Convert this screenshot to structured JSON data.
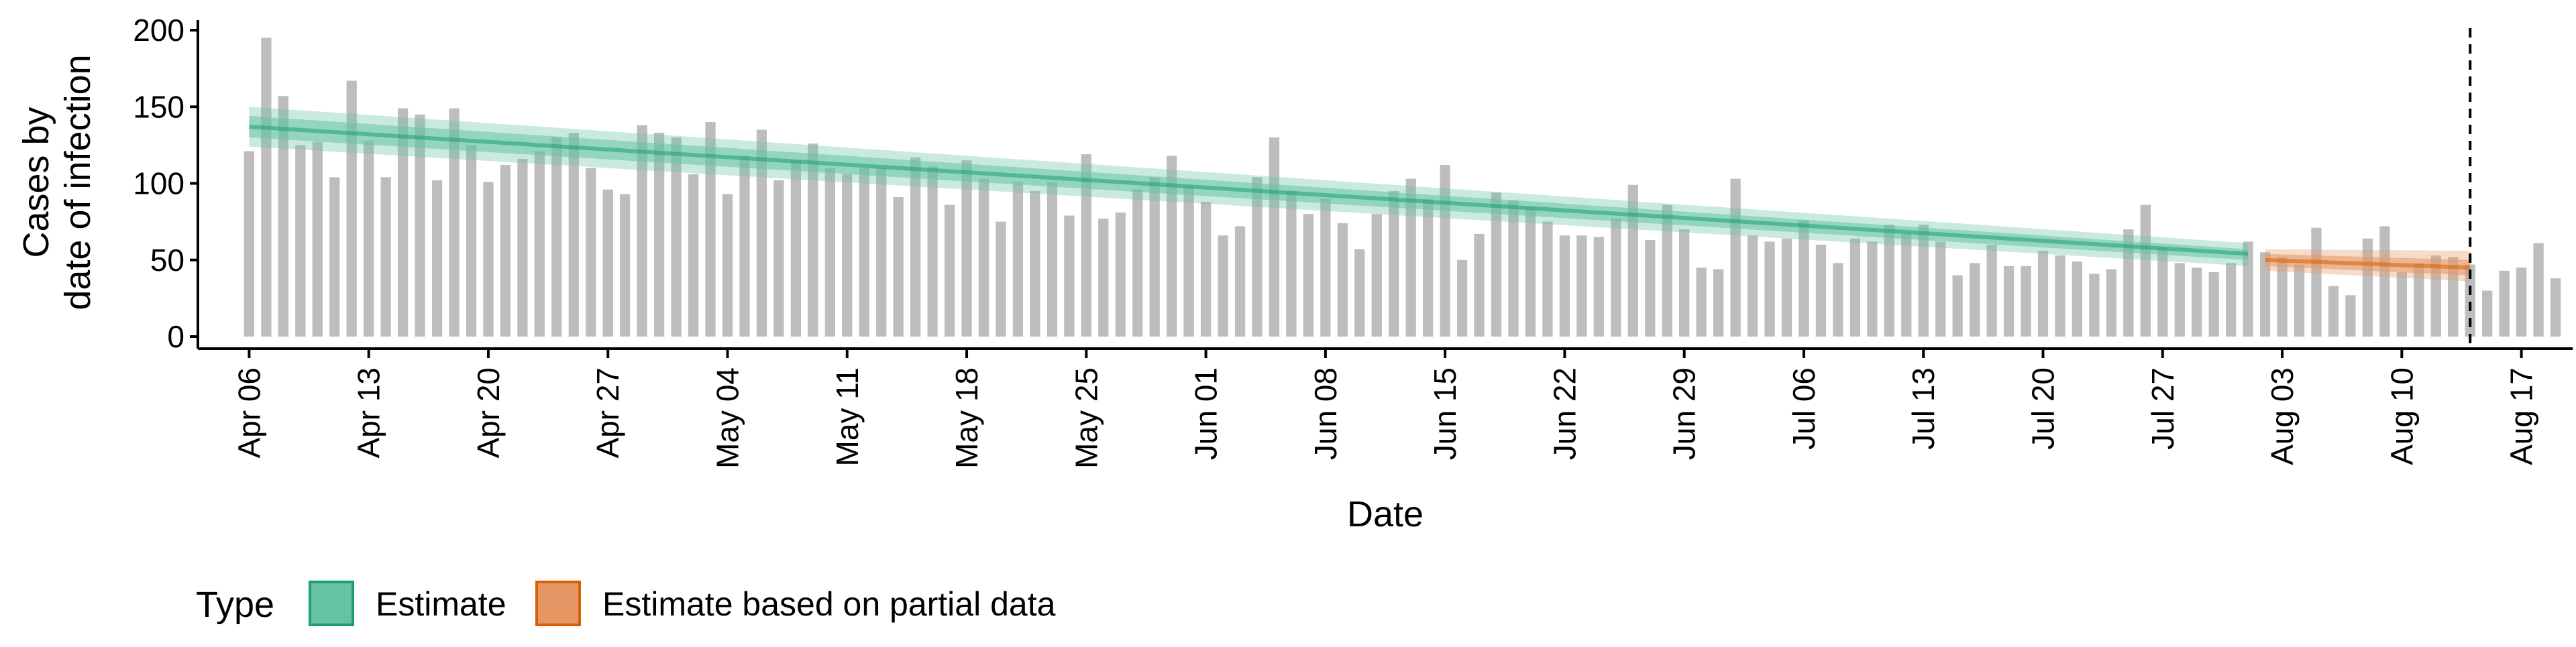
{
  "chart_data": {
    "type": "bar",
    "xlabel": "Date",
    "ylabel_lines": [
      "Cases by",
      "date of infection"
    ],
    "ylim": [
      0,
      200
    ],
    "y_ticks": [
      0,
      50,
      100,
      150,
      200
    ],
    "x_range": [
      "2020-04-03",
      "2020-08-20"
    ],
    "x_ticks": [
      {
        "date": "2020-04-06",
        "label": "Apr 06"
      },
      {
        "date": "2020-04-13",
        "label": "Apr 13"
      },
      {
        "date": "2020-04-20",
        "label": "Apr 20"
      },
      {
        "date": "2020-04-27",
        "label": "Apr 27"
      },
      {
        "date": "2020-05-04",
        "label": "May 04"
      },
      {
        "date": "2020-05-11",
        "label": "May 11"
      },
      {
        "date": "2020-05-18",
        "label": "May 18"
      },
      {
        "date": "2020-05-25",
        "label": "May 25"
      },
      {
        "date": "2020-06-01",
        "label": "Jun 01"
      },
      {
        "date": "2020-06-08",
        "label": "Jun 08"
      },
      {
        "date": "2020-06-15",
        "label": "Jun 15"
      },
      {
        "date": "2020-06-22",
        "label": "Jun 22"
      },
      {
        "date": "2020-06-29",
        "label": "Jun 29"
      },
      {
        "date": "2020-07-06",
        "label": "Jul 06"
      },
      {
        "date": "2020-07-13",
        "label": "Jul 13"
      },
      {
        "date": "2020-07-20",
        "label": "Jul 20"
      },
      {
        "date": "2020-07-27",
        "label": "Jul 27"
      },
      {
        "date": "2020-08-03",
        "label": "Aug 03"
      },
      {
        "date": "2020-08-10",
        "label": "Aug 10"
      },
      {
        "date": "2020-08-17",
        "label": "Aug 17"
      }
    ],
    "grid": false,
    "legend_position": "bottom",
    "bars": {
      "name": "Cases",
      "color": "#bdbdbd",
      "start_date": "2020-04-06",
      "values": [
        121,
        195,
        157,
        125,
        127,
        104,
        167,
        128,
        104,
        149,
        145,
        102,
        149,
        125,
        101,
        112,
        116,
        121,
        130,
        133,
        110,
        96,
        93,
        138,
        133,
        130,
        106,
        140,
        93,
        118,
        135,
        102,
        115,
        126,
        110,
        106,
        110,
        110,
        91,
        117,
        111,
        86,
        115,
        103,
        75,
        101,
        95,
        101,
        79,
        119,
        77,
        81,
        96,
        104,
        118,
        98,
        88,
        66,
        72,
        104,
        130,
        95,
        80,
        90,
        74,
        57,
        80,
        95,
        103,
        90,
        112,
        50,
        67,
        94,
        89,
        85,
        75,
        66,
        66,
        65,
        77,
        99,
        63,
        86,
        70,
        45,
        44,
        103,
        66,
        62,
        64,
        76,
        60,
        48,
        64,
        62,
        73,
        67,
        73,
        62,
        40,
        48,
        60,
        46,
        46,
        56,
        53,
        49,
        41,
        44,
        70,
        86,
        58,
        48,
        45,
        42,
        48,
        62,
        55,
        52,
        47,
        71,
        33,
        27,
        64,
        72,
        42,
        48,
        53,
        52,
        47,
        30,
        43,
        45,
        61,
        38
      ]
    },
    "series": [
      {
        "name": "Estimate",
        "color": "#1b9e77",
        "fill": "#66c2a5",
        "start_date": "2020-04-06",
        "end_date": "2020-08-01",
        "median": [
          137,
          54
        ],
        "inner_band": [
          [
            130,
            144
          ],
          [
            50,
            57
          ]
        ],
        "outer_band": [
          [
            124,
            150
          ],
          [
            46,
            61
          ]
        ]
      },
      {
        "name": "Estimate based on partial data",
        "color": "#d95f02",
        "fill": "#e59866",
        "start_date": "2020-08-02",
        "end_date": "2020-08-14",
        "median": [
          50,
          45
        ],
        "inner_band": [
          [
            46,
            54
          ],
          [
            40,
            50
          ]
        ],
        "outer_band": [
          [
            43,
            57
          ],
          [
            36,
            56
          ]
        ]
      }
    ],
    "reference_line": {
      "date": "2020-08-14",
      "style": "dashed"
    }
  },
  "legend": {
    "title": "Type",
    "items": [
      {
        "label": "Estimate",
        "fill": "#66c2a5",
        "stroke": "#1b9e77"
      },
      {
        "label": "Estimate based on partial data",
        "fill": "#e59866",
        "stroke": "#d95f02"
      }
    ]
  }
}
